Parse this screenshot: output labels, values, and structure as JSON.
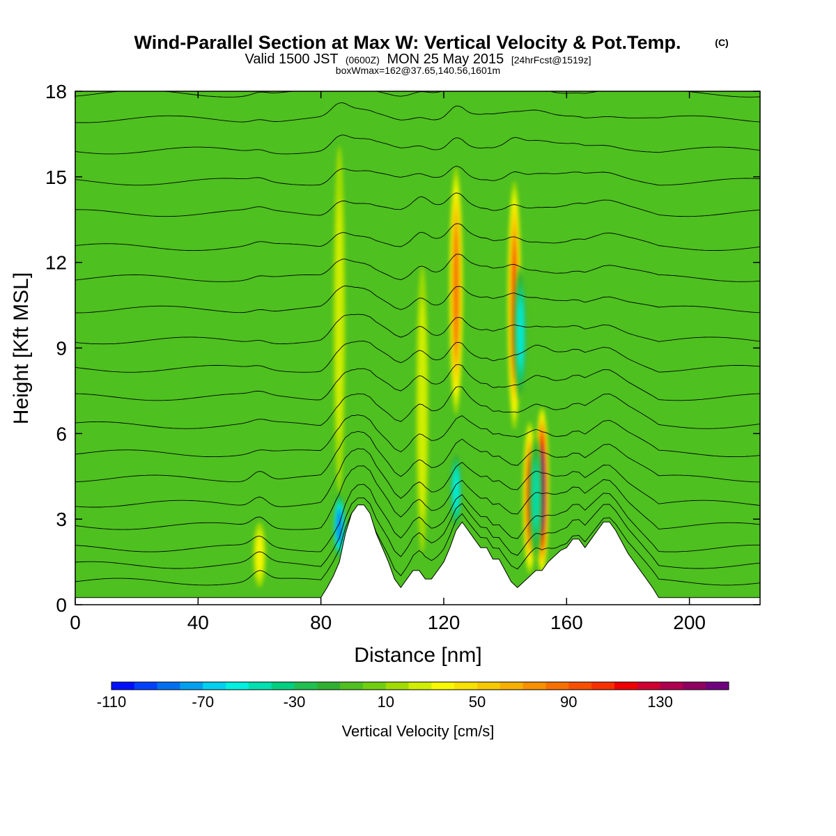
{
  "title": {
    "main": "Wind-Parallel Section at Max W: Vertical Velocity & Pot.Temp.",
    "copyright": "(C)",
    "valid_prefix": "Valid 1500 JST",
    "valid_zulu": "(0600Z)",
    "valid_date": "MON 25 May 2015",
    "forecast": "[24hrFcst@1519z]",
    "box_info": "boxWmax=162@37.65,140.56,1601m"
  },
  "chart_data": {
    "type": "heatmap",
    "xlabel": "Distance [nm]",
    "ylabel": "Height [Kft MSL]",
    "xlim": [
      0,
      223
    ],
    "ylim": [
      0,
      18
    ],
    "x_ticks": [
      0,
      40,
      80,
      120,
      160,
      200
    ],
    "y_ticks": [
      0,
      3,
      6,
      9,
      12,
      15,
      18
    ],
    "background_value_cm_s": 0,
    "updraft_cores": [
      {
        "x": 86,
        "y_bottom": 3.0,
        "y_top": 17.0,
        "peak": 20
      },
      {
        "x": 113,
        "y_bottom": 1.2,
        "y_top": 12.5,
        "peak": 25
      },
      {
        "x": 124,
        "y_bottom": 6.5,
        "y_top": 15.5,
        "peak": 85
      },
      {
        "x": 143,
        "y_bottom": 6.0,
        "y_top": 15.0,
        "peak": 95
      },
      {
        "x": 148,
        "y_bottom": 1.0,
        "y_top": 6.5,
        "peak": 105
      },
      {
        "x": 152,
        "y_bottom": 1.0,
        "y_top": 7.0,
        "peak": 162
      },
      {
        "x": 60,
        "y_bottom": 0.5,
        "y_top": 3.0,
        "peak": 30
      }
    ],
    "downdraft_cores": [
      {
        "x": 86,
        "y_bottom": 1.5,
        "y_top": 4.0,
        "peak": -90
      },
      {
        "x": 124,
        "y_bottom": 2.5,
        "y_top": 5.5,
        "peak": -60
      },
      {
        "x": 145,
        "y_bottom": 7.0,
        "y_top": 12.0,
        "peak": -60
      },
      {
        "x": 150,
        "y_bottom": 1.5,
        "y_top": 6.0,
        "peak": -50
      }
    ],
    "terrain_kft": [
      [
        0,
        0.25
      ],
      [
        80,
        0.25
      ],
      [
        82,
        0.6
      ],
      [
        84,
        1.0
      ],
      [
        86,
        1.5
      ],
      [
        88,
        2.5
      ],
      [
        90,
        3.2
      ],
      [
        92,
        3.5
      ],
      [
        94,
        3.5
      ],
      [
        96,
        3.2
      ],
      [
        98,
        2.5
      ],
      [
        100,
        2.0
      ],
      [
        102,
        1.5
      ],
      [
        104,
        0.9
      ],
      [
        106,
        0.6
      ],
      [
        108,
        0.9
      ],
      [
        110,
        1.2
      ],
      [
        112,
        1.2
      ],
      [
        114,
        0.9
      ],
      [
        116,
        0.9
      ],
      [
        118,
        1.2
      ],
      [
        120,
        1.5
      ],
      [
        122,
        2.0
      ],
      [
        124,
        2.6
      ],
      [
        126,
        2.9
      ],
      [
        128,
        2.6
      ],
      [
        130,
        2.3
      ],
      [
        132,
        2.0
      ],
      [
        134,
        2.0
      ],
      [
        136,
        1.6
      ],
      [
        138,
        1.6
      ],
      [
        140,
        1.2
      ],
      [
        142,
        0.8
      ],
      [
        144,
        0.6
      ],
      [
        146,
        0.8
      ],
      [
        148,
        1.0
      ],
      [
        150,
        1.2
      ],
      [
        152,
        1.2
      ],
      [
        154,
        1.5
      ],
      [
        156,
        1.7
      ],
      [
        158,
        1.9
      ],
      [
        160,
        2.0
      ],
      [
        162,
        2.3
      ],
      [
        164,
        2.3
      ],
      [
        166,
        2.0
      ],
      [
        168,
        2.3
      ],
      [
        170,
        2.6
      ],
      [
        172,
        2.9
      ],
      [
        174,
        2.9
      ],
      [
        176,
        2.6
      ],
      [
        178,
        2.2
      ],
      [
        180,
        1.8
      ],
      [
        182,
        1.5
      ],
      [
        184,
        1.2
      ],
      [
        186,
        0.9
      ],
      [
        188,
        0.6
      ],
      [
        190,
        0.25
      ],
      [
        223,
        0.25
      ]
    ],
    "theta_contour_base_heights_kft": [
      0.6,
      1.2,
      1.8,
      2.6,
      3.4,
      4.3,
      5.2,
      6.2,
      7.2,
      8.2,
      9.2,
      10.3,
      11.4,
      12.5,
      13.7,
      14.8,
      15.9,
      17.0,
      17.9
    ]
  },
  "colorbar": {
    "label": "Vertical Velocity [cm/s]",
    "tick_labels": [
      "-110",
      "-70",
      "-30",
      "10",
      "50",
      "90",
      "130"
    ],
    "min": -110,
    "max": 160,
    "step": 10,
    "colors": [
      "#0010ff",
      "#0040ff",
      "#0070f0",
      "#00a0f0",
      "#00d0f0",
      "#00f0e0",
      "#00e0b0",
      "#00d080",
      "#20c050",
      "#30b030",
      "#50c020",
      "#70d010",
      "#a0dc00",
      "#d0ee00",
      "#f8f800",
      "#f8e000",
      "#f8c800",
      "#f8b000",
      "#f89000",
      "#f87000",
      "#f85000",
      "#f83000",
      "#f00000",
      "#d00030",
      "#b00050",
      "#900060",
      "#700080"
    ]
  }
}
